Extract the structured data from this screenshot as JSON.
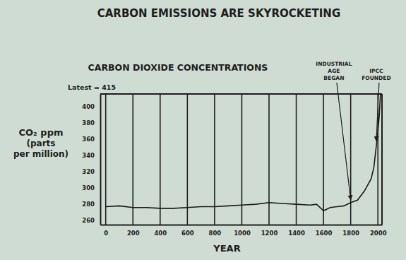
{
  "chart_data": {
    "type": "line",
    "title": "CARBON EMISSIONS ARE SKYROCKETING",
    "subtitle": "CARBON DIOXIDE CONCENTRATIONS",
    "x_label": "YEAR",
    "y_label": "CO₂ ppm (parts per million)",
    "x": [
      0,
      100,
      200,
      300,
      400,
      500,
      600,
      700,
      800,
      900,
      1000,
      1100,
      1200,
      1300,
      1400,
      1500,
      1550,
      1600,
      1650,
      1700,
      1750,
      1800,
      1850,
      1900,
      1950,
      1970,
      1990,
      2000,
      2010,
      2019
    ],
    "values": [
      277,
      278,
      276,
      276,
      275,
      275,
      276,
      277,
      277,
      278,
      279,
      280,
      282,
      281,
      280,
      279,
      280,
      272,
      276,
      277,
      278,
      282,
      285,
      296,
      311,
      325,
      354,
      369,
      389,
      415
    ],
    "color": "#1a1a1a",
    "xlim": [
      -40,
      2030
    ],
    "ylim": [
      255,
      415
    ],
    "xticks": [
      0,
      200,
      400,
      600,
      800,
      1000,
      1200,
      1400,
      1600,
      1800,
      2000
    ],
    "yticks": [
      260,
      280,
      300,
      320,
      340,
      360,
      380,
      400
    ],
    "grid": "x",
    "annotations": [
      {
        "text": "Latest = 415"
      },
      {
        "text": "INDUSTRIAL AGE BEGAN",
        "x": 1800
      },
      {
        "text": "IPCC FOUNDED",
        "x": 1988
      }
    ]
  }
}
